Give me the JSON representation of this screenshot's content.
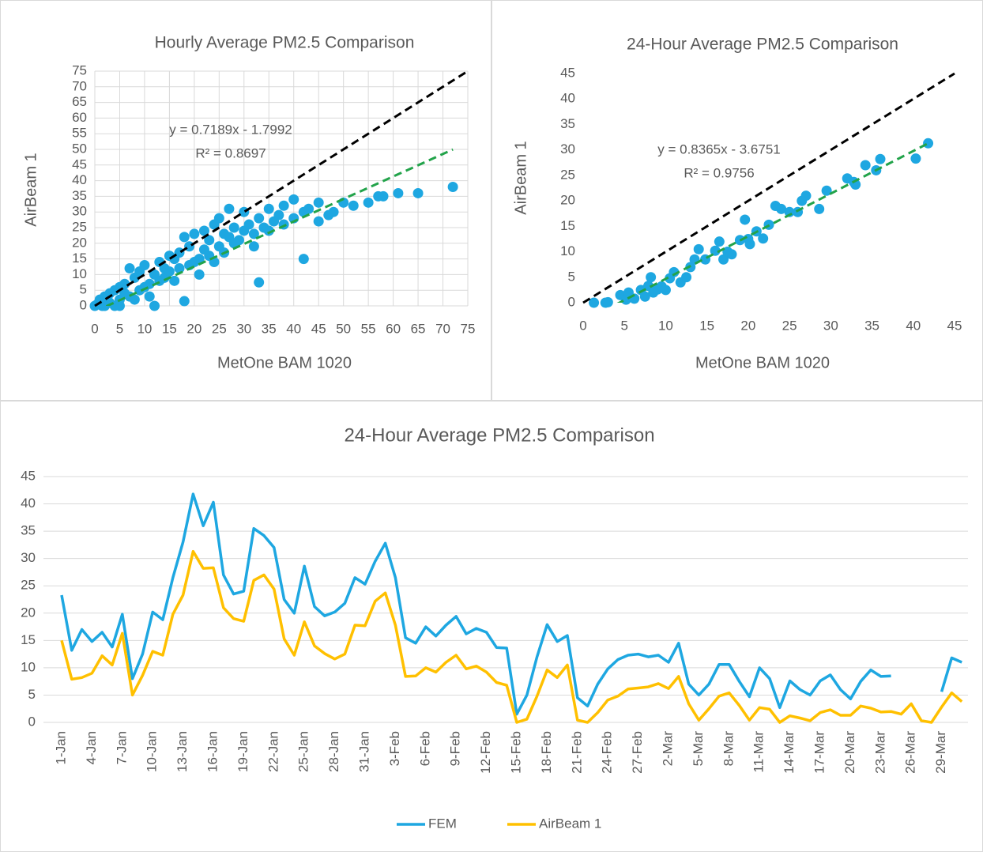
{
  "chart_data": [
    {
      "type": "scatter",
      "title": "Hourly Average PM2.5 Comparison",
      "x_label": "MetOne BAM 1020",
      "y_label": "AirBeam 1",
      "color": "#1ea7e1",
      "x": [
        0,
        0.5,
        1,
        1.5,
        2,
        2,
        3,
        3,
        4,
        4,
        5,
        5,
        5,
        6,
        6,
        7,
        7,
        8,
        8,
        9,
        9,
        10,
        10,
        11,
        11,
        12,
        12,
        13,
        13,
        14,
        14,
        15,
        15,
        16,
        16,
        17,
        17,
        18,
        18,
        19,
        19,
        20,
        20,
        21,
        21,
        22,
        22,
        23,
        23,
        24,
        24,
        25,
        25,
        26,
        26,
        27,
        27,
        28,
        28,
        29,
        30,
        30,
        31,
        32,
        32,
        33,
        33,
        34,
        35,
        35,
        36,
        37,
        38,
        38,
        40,
        40,
        42,
        42,
        43,
        45,
        45,
        47,
        48,
        50,
        52,
        55,
        57,
        58,
        61,
        65,
        72
      ],
      "values": [
        0,
        0.5,
        2,
        0,
        3,
        0,
        1,
        4,
        0,
        5,
        2,
        6,
        0,
        4,
        7,
        3,
        12,
        2,
        9,
        5,
        11,
        6,
        13,
        7,
        3,
        10,
        0,
        8,
        14,
        9,
        12,
        11,
        16,
        8,
        15,
        12,
        17,
        1.5,
        22,
        13,
        19,
        14,
        23,
        15,
        10,
        18,
        24,
        16,
        21,
        14,
        26,
        19,
        28,
        17,
        23,
        22,
        31,
        20,
        25,
        21,
        24,
        30,
        26,
        19,
        23,
        7.5,
        28,
        25,
        24,
        31,
        27,
        29,
        26,
        32,
        28,
        34,
        15,
        30,
        31,
        27,
        33,
        29,
        30,
        33,
        32,
        33,
        35,
        35,
        36,
        36,
        38
      ],
      "trendline": {
        "slope": 0.7189,
        "intercept": -1.7992,
        "color": "#22a34a",
        "equation": "y = 0.7189x - 1.7992",
        "r2": "R² = 0.8697"
      },
      "xlim": [
        0,
        75
      ],
      "ylim": [
        0,
        75
      ],
      "xticks": [
        0,
        5,
        10,
        15,
        20,
        25,
        30,
        35,
        40,
        45,
        50,
        55,
        60,
        65,
        70,
        75
      ],
      "yticks": [
        0,
        5,
        10,
        15,
        20,
        25,
        30,
        35,
        40,
        45,
        50,
        55,
        60,
        65,
        70,
        75
      ],
      "grid": "both"
    },
    {
      "type": "scatter",
      "title": "24-Hour Average PM2.5 Comparison",
      "x_label": "MetOne BAM 1020",
      "y_label": "AirBeam 1",
      "color": "#1ea7e1",
      "x": [
        1.3,
        2.7,
        3,
        4.5,
        5.2,
        5.5,
        6.2,
        7,
        7.5,
        7.9,
        8.2,
        8.5,
        9,
        9.5,
        10,
        10.5,
        11,
        11.8,
        12.5,
        13,
        13.5,
        14,
        14.8,
        16,
        16.5,
        17,
        17.5,
        18,
        19,
        19.6,
        20,
        20.2,
        21,
        21.8,
        22.5,
        23.3,
        24,
        25,
        26,
        26.5,
        27,
        28.6,
        29.5,
        32,
        32.8,
        33,
        34.2,
        35.5,
        36,
        40.3,
        41.8
      ],
      "values": [
        0,
        0,
        0.1,
        1.5,
        0.6,
        2,
        0.8,
        2.5,
        1.2,
        3.3,
        5,
        2,
        2.6,
        3.2,
        2.5,
        4.8,
        6,
        4,
        5,
        7,
        8.5,
        10.5,
        8.5,
        10.2,
        12,
        8.5,
        10,
        9.5,
        12.3,
        16.3,
        12.5,
        11.5,
        14,
        12.6,
        15.3,
        19,
        18.4,
        17.8,
        17.8,
        20,
        21,
        18.4,
        22,
        24.4,
        23.7,
        23.2,
        27,
        26,
        28.2,
        28.3,
        31.3
      ],
      "trendline": {
        "slope": 0.8365,
        "intercept": -3.6751,
        "color": "#22a34a",
        "equation": "y = 0.8365x - 3.6751",
        "r2": "R² = 0.9756"
      },
      "xlim": [
        0,
        45
      ],
      "ylim": [
        0,
        45
      ],
      "xticks": [
        0,
        5,
        10,
        15,
        20,
        25,
        30,
        35,
        40,
        45
      ],
      "yticks": [
        0,
        5,
        10,
        15,
        20,
        25,
        30,
        35,
        40,
        45
      ],
      "grid": "none"
    },
    {
      "type": "line",
      "title": "24-Hour Average PM2.5 Comparison",
      "categories": [
        "1-Jan",
        null,
        null,
        "4-Jan",
        null,
        null,
        "7-Jan",
        null,
        null,
        "10-Jan",
        null,
        null,
        "13-Jan",
        null,
        null,
        "16-Jan",
        null,
        null,
        "19-Jan",
        null,
        null,
        "22-Jan",
        null,
        null,
        "25-Jan",
        null,
        null,
        "28-Jan",
        null,
        null,
        "31-Jan",
        null,
        null,
        "3-Feb",
        null,
        null,
        "6-Feb",
        null,
        null,
        "9-Feb",
        null,
        null,
        "12-Feb",
        null,
        null,
        "15-Feb",
        null,
        null,
        "18-Feb",
        null,
        null,
        "21-Feb",
        null,
        null,
        "24-Feb",
        null,
        null,
        "27-Feb",
        null,
        null,
        "2-Mar",
        null,
        null,
        "5-Mar",
        null,
        null,
        "8-Mar",
        null,
        null,
        "11-Mar",
        null,
        null,
        "14-Mar",
        null,
        null,
        "17-Mar",
        null,
        null,
        "20-Mar",
        null,
        null,
        "23-Mar",
        null,
        null,
        "26-Mar",
        null,
        null,
        "29-Mar",
        null,
        null
      ],
      "series": [
        {
          "name": "FEM",
          "color": "#1ea7e1",
          "values": [
            23.3,
            13.2,
            17,
            14.8,
            16.5,
            13.8,
            19.8,
            8,
            12.5,
            20.2,
            18.8,
            26.5,
            33,
            41.8,
            36,
            40.3,
            27,
            23.5,
            24,
            35.5,
            34.2,
            32,
            22.5,
            20,
            28.6,
            21.2,
            19.5,
            20.2,
            21.8,
            26.5,
            25.3,
            29.5,
            32.8,
            26.5,
            15.5,
            14.5,
            17.5,
            15.8,
            17.8,
            19.4,
            16.2,
            17.2,
            16.5,
            13.7,
            13.6,
            1.5,
            5,
            12,
            17.9,
            14.8,
            15.9,
            4.5,
            3,
            7,
            9.8,
            11.5,
            12.3,
            12.5,
            12,
            12.3,
            11,
            14.5,
            7,
            5,
            7,
            10.6,
            10.6,
            7.5,
            4.7,
            10,
            8,
            2.7,
            7.6,
            6,
            5,
            7.6,
            8.7,
            6,
            4.3,
            7.5,
            9.6,
            8.4,
            8.5,
            null,
            null,
            null,
            null,
            5.6,
            11.8,
            11
          ]
        },
        {
          "name": "AirBeam 1",
          "color": "#ffc000",
          "values": [
            15,
            7.9,
            8.2,
            9,
            12.2,
            10.5,
            16.3,
            5,
            8.6,
            13,
            12.3,
            19.8,
            23.3,
            31.3,
            28.2,
            28.3,
            21,
            19,
            18.5,
            26,
            27,
            24.4,
            15.3,
            12.3,
            18.4,
            14,
            12.6,
            11.6,
            12.5,
            17.8,
            17.7,
            22.2,
            23.7,
            17.8,
            8.4,
            8.5,
            10,
            9.2,
            11,
            12.3,
            9.8,
            10.3,
            9.2,
            7.3,
            6.8,
            0,
            0.6,
            4.8,
            9.6,
            8.2,
            10.5,
            0.4,
            0,
            1.8,
            4.1,
            4.8,
            6.1,
            6.3,
            6.5,
            7.1,
            6.2,
            8.4,
            3.4,
            0.4,
            2.5,
            4.8,
            5.4,
            3.1,
            0.4,
            2.7,
            2.4,
            0,
            1.2,
            0.8,
            0.3,
            1.8,
            2.3,
            1.3,
            1.3,
            3,
            2.6,
            1.9,
            2,
            1.5,
            3.4,
            0.3,
            0,
            2.8,
            5.4,
            3.8
          ]
        }
      ],
      "ylim": [
        0,
        45
      ],
      "yticks": [
        0,
        5,
        10,
        15,
        20,
        25,
        30,
        35,
        40,
        45
      ],
      "grid": "y",
      "legend": "bottom"
    }
  ]
}
